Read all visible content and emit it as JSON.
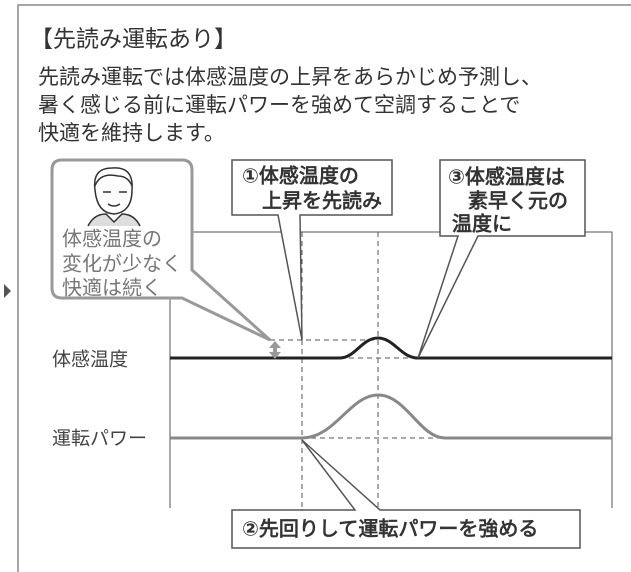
{
  "title": "【先読み運転あり】",
  "description": [
    "先読み運転では体感温度の上昇をあらかじめ予測し、",
    "暑く感じる前に運転パワーを強めて空調することで",
    "快適を維持します。"
  ],
  "person_bubble": [
    "体感温度の",
    "変化が少なく",
    "快適は続く"
  ],
  "callouts": [
    {
      "lines": [
        "①体感温度の",
        "上昇を先読み"
      ]
    },
    {
      "lines": [
        "②先回りして運転パワーを強める"
      ]
    },
    {
      "lines": [
        "③体感温度は",
        "素早く元の",
        "温度に"
      ]
    }
  ],
  "row_labels": [
    "体感温度",
    "運転パワー"
  ]
}
